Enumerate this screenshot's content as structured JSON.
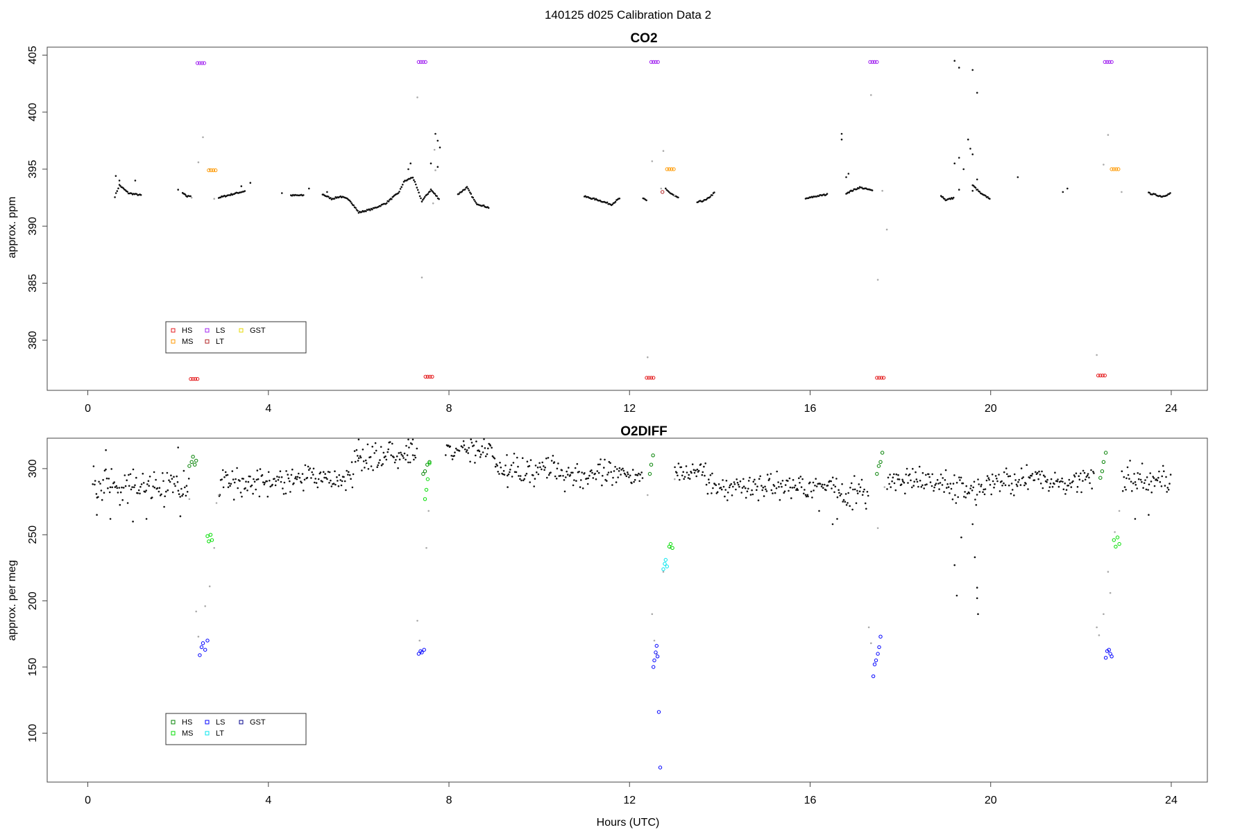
{
  "figure_title": "140125   d025   Calibration Data 2",
  "chart_data": [
    {
      "type": "scatter",
      "title": "CO2",
      "xlabel": "",
      "ylabel": "approx. ppm",
      "xlim": [
        -0.9,
        24.8
      ],
      "ylim": [
        375.6,
        405.7
      ],
      "xticks": [
        0,
        4,
        8,
        12,
        16,
        20,
        24
      ],
      "yticks": [
        380,
        385,
        390,
        395,
        400,
        405
      ],
      "legend": {
        "placement": "bottom-left",
        "entries": [
          {
            "label": "HS",
            "color": "#e41a1c"
          },
          {
            "label": "MS",
            "color": "#ff9900"
          },
          {
            "label": "LS",
            "color": "#a020f0"
          },
          {
            "label": "LT",
            "color": "#b22222"
          },
          {
            "label": "GST",
            "color": "#e6d800"
          }
        ]
      },
      "baseline_trace": [
        [
          0.1,
          392.8
        ],
        [
          0.6,
          392.6
        ],
        [
          0.7,
          393.6
        ],
        [
          0.9,
          392.9
        ],
        [
          1.2,
          392.7
        ],
        [
          1.7,
          392.7
        ],
        [
          2.1,
          392.9
        ],
        [
          2.2,
          392.6
        ],
        [
          2.3,
          392.7
        ],
        [
          2.9,
          392.5
        ],
        [
          3.2,
          392.8
        ],
        [
          3.5,
          393.1
        ],
        [
          4.0,
          392.7
        ],
        [
          4.5,
          392.7
        ],
        [
          4.8,
          392.7
        ],
        [
          5.2,
          392.8
        ],
        [
          5.4,
          392.4
        ],
        [
          5.6,
          392.6
        ],
        [
          5.8,
          392.3
        ],
        [
          6.0,
          391.2
        ],
        [
          6.3,
          391.5
        ],
        [
          6.6,
          392.0
        ],
        [
          6.9,
          393.0
        ],
        [
          7.0,
          393.9
        ],
        [
          7.2,
          394.3
        ],
        [
          7.4,
          392.2
        ],
        [
          7.6,
          393.2
        ],
        [
          7.8,
          392.3
        ],
        [
          8.2,
          392.8
        ],
        [
          8.4,
          393.4
        ],
        [
          8.6,
          392.0
        ],
        [
          8.9,
          391.6
        ],
        [
          9.3,
          392.4
        ],
        [
          10.0,
          392.5
        ],
        [
          10.5,
          392.5
        ],
        [
          11.0,
          392.6
        ],
        [
          11.3,
          392.3
        ],
        [
          11.6,
          391.9
        ],
        [
          11.8,
          392.5
        ],
        [
          12.3,
          392.4
        ],
        [
          12.4,
          392.2
        ],
        [
          12.8,
          393.3
        ],
        [
          12.9,
          392.9
        ],
        [
          13.1,
          392.4
        ],
        [
          13.5,
          392.1
        ],
        [
          13.7,
          392.3
        ],
        [
          13.9,
          393.0
        ],
        [
          14.5,
          393.2
        ],
        [
          15.0,
          393.3
        ],
        [
          15.5,
          392.8
        ],
        [
          15.9,
          392.4
        ],
        [
          16.1,
          392.6
        ],
        [
          16.4,
          392.8
        ],
        [
          16.8,
          392.9
        ],
        [
          17.1,
          393.4
        ],
        [
          17.4,
          393.1
        ],
        [
          17.8,
          392.6
        ],
        [
          18.5,
          392.8
        ],
        [
          18.9,
          392.7
        ],
        [
          19.0,
          392.3
        ],
        [
          19.2,
          392.5
        ],
        [
          19.6,
          393.6
        ],
        [
          19.8,
          392.8
        ],
        [
          20.0,
          392.4
        ],
        [
          20.6,
          392.6
        ],
        [
          21.0,
          392.4
        ],
        [
          21.5,
          392.5
        ],
        [
          22.1,
          392.8
        ],
        [
          22.5,
          392.6
        ],
        [
          22.9,
          392.9
        ],
        [
          23.5,
          392.9
        ],
        [
          23.8,
          392.6
        ],
        [
          24.0,
          392.9
        ]
      ],
      "baseline_points": [
        [
          0.62,
          394.4
        ],
        [
          0.7,
          394.0
        ],
        [
          1.05,
          394.0
        ],
        [
          2.0,
          393.2
        ],
        [
          3.4,
          393.5
        ],
        [
          3.6,
          393.8
        ],
        [
          4.3,
          392.9
        ],
        [
          4.9,
          393.3
        ],
        [
          5.3,
          393.0
        ],
        [
          7.1,
          395.0
        ],
        [
          7.15,
          395.5
        ],
        [
          7.6,
          395.5
        ],
        [
          7.75,
          397.5
        ],
        [
          7.8,
          396.9
        ],
        [
          7.7,
          398.1
        ],
        [
          7.75,
          395.2
        ],
        [
          16.7,
          398.1
        ],
        [
          16.7,
          397.6
        ],
        [
          16.8,
          394.3
        ],
        [
          16.85,
          394.6
        ],
        [
          19.2,
          404.5
        ],
        [
          19.3,
          403.9
        ],
        [
          19.6,
          403.7
        ],
        [
          19.7,
          401.7
        ],
        [
          19.2,
          395.5
        ],
        [
          19.3,
          396.0
        ],
        [
          19.5,
          397.6
        ],
        [
          19.55,
          396.8
        ],
        [
          19.6,
          396.3
        ],
        [
          19.4,
          395.0
        ],
        [
          19.7,
          394.1
        ],
        [
          19.3,
          393.2
        ],
        [
          19.6,
          393.1
        ],
        [
          20.6,
          394.3
        ],
        [
          21.6,
          393.0
        ],
        [
          21.7,
          393.3
        ]
      ],
      "transition_points": [
        [
          2.3,
          392.5
        ],
        [
          2.45,
          395.6
        ],
        [
          2.55,
          397.8
        ],
        [
          2.7,
          395.0
        ],
        [
          2.8,
          392.4
        ],
        [
          7.3,
          401.3
        ],
        [
          7.4,
          385.5
        ],
        [
          7.65,
          392.0
        ],
        [
          7.68,
          396.7
        ],
        [
          7.7,
          394.9
        ],
        [
          12.4,
          378.5
        ],
        [
          12.5,
          395.7
        ],
        [
          12.7,
          393.3
        ],
        [
          12.75,
          396.6
        ],
        [
          13.0,
          392.7
        ],
        [
          17.35,
          401.5
        ],
        [
          17.5,
          385.3
        ],
        [
          17.6,
          393.1
        ],
        [
          17.7,
          389.7
        ],
        [
          22.35,
          378.7
        ],
        [
          22.5,
          395.4
        ],
        [
          22.6,
          398.0
        ],
        [
          22.9,
          393.0
        ]
      ],
      "series": [
        {
          "name": "HS",
          "color": "#e41a1c",
          "x": [
            2.28,
            2.33,
            2.38,
            2.43,
            7.48,
            7.53,
            7.58,
            7.63,
            12.38,
            12.43,
            12.48,
            12.53,
            17.48,
            17.53,
            17.58,
            17.63,
            22.38,
            22.43,
            22.48,
            22.53
          ],
          "y": [
            376.6,
            376.6,
            376.6,
            376.6,
            376.8,
            376.8,
            376.8,
            376.8,
            376.7,
            376.7,
            376.7,
            376.7,
            376.7,
            376.7,
            376.7,
            376.7,
            376.9,
            376.9,
            376.9,
            376.9
          ]
        },
        {
          "name": "MS",
          "color": "#ff9900",
          "x": [
            2.68,
            2.73,
            2.78,
            2.83,
            12.83,
            12.88,
            12.93,
            12.98,
            22.68,
            22.73,
            22.78,
            22.83
          ],
          "y": [
            394.9,
            394.9,
            394.9,
            394.9,
            395.0,
            395.0,
            395.0,
            395.0,
            395.0,
            395.0,
            395.0,
            395.0
          ]
        },
        {
          "name": "LS",
          "color": "#a020f0",
          "x": [
            2.43,
            2.48,
            2.53,
            2.58,
            7.33,
            7.38,
            7.43,
            7.48,
            12.48,
            12.53,
            12.58,
            12.63,
            17.33,
            17.38,
            17.43,
            17.48,
            22.53,
            22.58,
            22.63,
            22.68
          ],
          "y": [
            404.3,
            404.3,
            404.3,
            404.3,
            404.4,
            404.4,
            404.4,
            404.4,
            404.4,
            404.4,
            404.4,
            404.4,
            404.4,
            404.4,
            404.4,
            404.4,
            404.4,
            404.4,
            404.4,
            404.4
          ]
        },
        {
          "name": "LT",
          "color": "#b22222",
          "x": [
            12.73
          ],
          "y": [
            393.0
          ]
        },
        {
          "name": "GST",
          "color": "#e6d800",
          "x": [],
          "y": []
        }
      ]
    },
    {
      "type": "scatter",
      "title": "O2DIFF",
      "xlabel": "Hours (UTC)",
      "ylabel": "approx. per meg",
      "xlim": [
        -0.9,
        24.8
      ],
      "ylim": [
        63,
        323
      ],
      "xticks": [
        0,
        4,
        8,
        12,
        16,
        20,
        24
      ],
      "yticks": [
        100,
        150,
        200,
        250,
        300
      ],
      "legend": {
        "placement": "bottom-left",
        "entries": [
          {
            "label": "HS",
            "color": "#008000"
          },
          {
            "label": "MS",
            "color": "#00dd00"
          },
          {
            "label": "LS",
            "color": "#0000ff"
          },
          {
            "label": "LT",
            "color": "#00e5ee"
          },
          {
            "label": "GST",
            "color": "#00008b"
          }
        ]
      },
      "baseline_segments": [
        {
          "x0": 0.1,
          "x1": 2.25,
          "center": 287,
          "spread": 13
        },
        {
          "x0": 2.9,
          "x1": 4.5,
          "center": 290,
          "spread": 11
        },
        {
          "x0": 4.5,
          "x1": 5.9,
          "center": 292,
          "spread": 12
        },
        {
          "x0": 5.9,
          "x1": 7.3,
          "center": 309,
          "spread": 11
        },
        {
          "x0": 7.9,
          "x1": 9.0,
          "center": 314,
          "spread": 10
        },
        {
          "x0": 9.0,
          "x1": 10.5,
          "center": 300,
          "spread": 11
        },
        {
          "x0": 10.5,
          "x1": 12.3,
          "center": 295,
          "spread": 10
        },
        {
          "x0": 13.0,
          "x1": 13.7,
          "center": 298,
          "spread": 8
        },
        {
          "x0": 13.7,
          "x1": 16.6,
          "center": 287,
          "spread": 9
        },
        {
          "x0": 16.6,
          "x1": 17.3,
          "center": 281,
          "spread": 11
        },
        {
          "x0": 17.7,
          "x1": 19.0,
          "center": 290,
          "spread": 9
        },
        {
          "x0": 19.0,
          "x1": 19.9,
          "center": 285,
          "spread": 13
        },
        {
          "x0": 19.9,
          "x1": 22.3,
          "center": 291,
          "spread": 10
        },
        {
          "x0": 22.9,
          "x1": 24.0,
          "center": 291,
          "spread": 12
        }
      ],
      "baseline_points": [
        [
          0.2,
          265
        ],
        [
          0.4,
          314
        ],
        [
          0.5,
          262
        ],
        [
          1.0,
          260
        ],
        [
          1.3,
          262
        ],
        [
          2.0,
          316
        ],
        [
          2.05,
          264
        ],
        [
          6.0,
          322
        ],
        [
          7.1,
          322
        ],
        [
          7.2,
          322
        ],
        [
          9.3,
          286
        ],
        [
          16.2,
          268
        ],
        [
          16.5,
          258
        ],
        [
          16.6,
          262
        ],
        [
          19.2,
          227
        ],
        [
          19.25,
          204
        ],
        [
          19.35,
          248
        ],
        [
          19.6,
          258
        ],
        [
          19.65,
          233
        ],
        [
          19.7,
          202
        ],
        [
          19.72,
          190
        ],
        [
          19.7,
          210
        ],
        [
          23.2,
          262
        ],
        [
          23.5,
          265
        ]
      ],
      "transition_points": [
        [
          2.25,
          277
        ],
        [
          2.4,
          192
        ],
        [
          2.45,
          173
        ],
        [
          2.6,
          196
        ],
        [
          2.7,
          211
        ],
        [
          2.8,
          240
        ],
        [
          2.85,
          274
        ],
        [
          2.9,
          280
        ],
        [
          7.3,
          185
        ],
        [
          7.35,
          170
        ],
        [
          7.5,
          240
        ],
        [
          7.55,
          268
        ],
        [
          12.4,
          280
        ],
        [
          12.5,
          190
        ],
        [
          12.55,
          170
        ],
        [
          12.6,
          160
        ],
        [
          12.75,
          222
        ],
        [
          12.9,
          240
        ],
        [
          13.0,
          292
        ],
        [
          17.3,
          180
        ],
        [
          17.35,
          168
        ],
        [
          17.5,
          255
        ],
        [
          17.65,
          286
        ],
        [
          22.35,
          180
        ],
        [
          22.4,
          174
        ],
        [
          22.5,
          190
        ],
        [
          22.6,
          222
        ],
        [
          22.65,
          206
        ],
        [
          22.75,
          252
        ],
        [
          22.85,
          268
        ]
      ],
      "series": [
        {
          "name": "HS",
          "color": "#008000",
          "x": [
            2.25,
            2.3,
            2.33,
            2.37,
            2.4,
            7.43,
            7.47,
            7.52,
            7.57,
            12.45,
            12.48,
            12.52,
            17.48,
            17.52,
            17.56,
            17.6,
            22.43,
            22.47,
            22.5,
            22.55
          ],
          "y": [
            302,
            305,
            309,
            303,
            306,
            296,
            298,
            303,
            305,
            296,
            303,
            310,
            296,
            302,
            305,
            312,
            293,
            298,
            305,
            312
          ]
        },
        {
          "name": "MS",
          "color": "#00dd00",
          "x": [
            2.65,
            2.68,
            2.72,
            2.75,
            7.47,
            7.5,
            7.53,
            7.57,
            12.88,
            12.91,
            12.95,
            22.73,
            22.77,
            22.81,
            22.85
          ],
          "y": [
            249,
            245,
            250,
            246,
            277,
            284,
            292,
            304,
            241,
            243,
            240,
            246,
            241,
            248,
            243
          ]
        },
        {
          "name": "LS",
          "color": "#0000ff",
          "x": [
            2.48,
            2.52,
            2.55,
            2.6,
            2.65,
            7.33,
            7.37,
            7.4,
            7.45,
            12.53,
            12.55,
            12.58,
            12.6,
            12.62,
            12.65,
            12.68,
            17.4,
            17.43,
            17.46,
            17.5,
            17.53,
            17.56,
            22.55,
            22.58,
            22.62,
            22.65,
            22.68
          ],
          "y": [
            159,
            165,
            168,
            163,
            170,
            160,
            162,
            161,
            163,
            150,
            155,
            161,
            166,
            158,
            116,
            74,
            143,
            152,
            155,
            160,
            165,
            173,
            157,
            162,
            163,
            160,
            158
          ]
        },
        {
          "name": "LT",
          "color": "#00e5ee",
          "x": [
            12.75,
            12.78,
            12.8,
            12.83
          ],
          "y": [
            224,
            228,
            231,
            226
          ]
        },
        {
          "name": "GST",
          "color": "#00008b",
          "x": [],
          "y": []
        }
      ]
    }
  ]
}
